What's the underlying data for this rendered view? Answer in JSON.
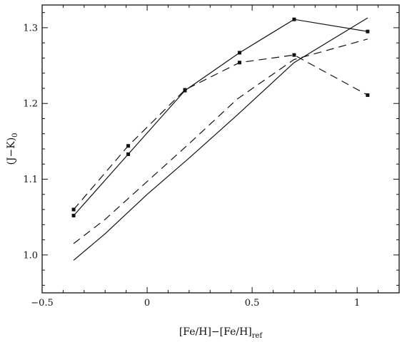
{
  "chart_data": {
    "type": "line",
    "title": "",
    "xlabel": {
      "main": "[Fe/H]−[Fe/H]",
      "sub": "ref"
    },
    "ylabel": {
      "main": "(J−K)",
      "sub": "0"
    },
    "xlim": [
      -0.5,
      1.2
    ],
    "ylim": [
      0.95,
      1.33
    ],
    "xticks": [
      -0.5,
      0,
      0.5,
      1
    ],
    "xtick_labels": [
      "−0.5",
      "0",
      "0.5",
      "1"
    ],
    "yticks": [
      1.0,
      1.1,
      1.2,
      1.3
    ],
    "ytick_labels": [
      "1.0",
      "1.1",
      "1.2",
      "1.3"
    ],
    "grid": false,
    "legend": "none",
    "series": [
      {
        "style": "solid",
        "markers": true,
        "x": [
          -0.35,
          -0.09,
          0.18,
          0.44,
          0.7,
          1.05
        ],
        "y": [
          1.052,
          1.133,
          1.217,
          1.267,
          1.311,
          1.295
        ]
      },
      {
        "style": "dashed",
        "markers": true,
        "x": [
          -0.35,
          -0.09,
          0.18,
          0.44,
          0.7,
          1.05
        ],
        "y": [
          1.06,
          1.144,
          1.218,
          1.254,
          1.264,
          1.211
        ]
      },
      {
        "style": "solid",
        "markers": false,
        "x": [
          -0.35,
          -0.2,
          0.0,
          0.2,
          0.43,
          0.7,
          1.05
        ],
        "y": [
          0.993,
          1.028,
          1.08,
          1.128,
          1.185,
          1.254,
          1.313
        ]
      },
      {
        "style": "dashed",
        "markers": false,
        "x": [
          -0.35,
          -0.2,
          0.0,
          0.2,
          0.43,
          0.7,
          1.05
        ],
        "y": [
          1.015,
          1.047,
          1.097,
          1.147,
          1.206,
          1.258,
          1.285
        ]
      }
    ],
    "colors": {
      "line": "#111111",
      "background": "#ffffff"
    }
  }
}
